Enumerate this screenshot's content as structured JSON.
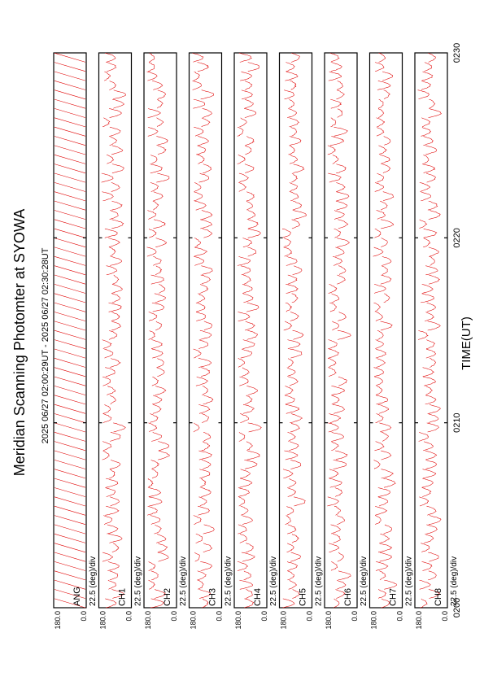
{
  "title": "Meridian Scanning Photomter at SYOWA",
  "time_range_label": "2025 06/27 02:00:29UT - 2025 06/27 02:30:28UT",
  "xlabel": "TIME(UT)",
  "colors": {
    "trace": "#e00000",
    "axes": "#000000",
    "background": "#ffffff"
  },
  "chart_data": {
    "type": "line",
    "title": "Meridian Scanning Photomter at SYOWA",
    "subtitle": "2025 06/27 02:00:29UT - 2025 06/27 02:30:28UT",
    "xlabel": "TIME(UT)",
    "x_ticks": [
      "0200",
      "0210",
      "0220",
      "0230"
    ],
    "x_range_minutes": [
      0,
      30
    ],
    "y_range_deg": [
      0.0,
      180.0
    ],
    "y_tick_labels": [
      "180.0",
      "0.0"
    ],
    "scale_label": "22.5 (deg)/div",
    "scans_per_panel": 60,
    "orientation": "rotated 90 degrees counter-clockwise",
    "panels": [
      {
        "label": "ANG",
        "kind": "scan-angle"
      },
      {
        "label": "CH1",
        "kind": "intensity"
      },
      {
        "label": "CH2",
        "kind": "intensity"
      },
      {
        "label": "CH3",
        "kind": "intensity"
      },
      {
        "label": "CH4",
        "kind": "intensity"
      },
      {
        "label": "CH5",
        "kind": "intensity"
      },
      {
        "label": "CH6",
        "kind": "intensity"
      },
      {
        "label": "CH7",
        "kind": "intensity"
      },
      {
        "label": "CH8",
        "kind": "intensity"
      }
    ]
  }
}
